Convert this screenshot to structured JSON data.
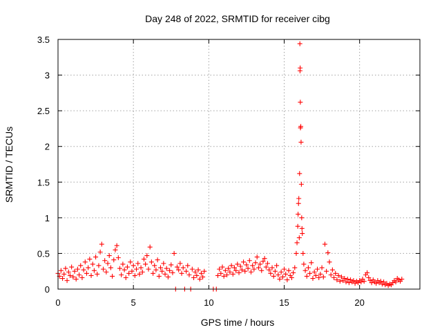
{
  "chart_data": {
    "type": "scatter",
    "title": "Day 248 of 2022, SRMTID for receiver cibg",
    "xlabel": "GPS time / hours",
    "ylabel": "SRMTID / TECUs",
    "xlim": [
      0,
      24
    ],
    "ylim": [
      0,
      3.5
    ],
    "xticks": [
      0,
      5,
      10,
      15,
      20
    ],
    "xtick_labels": [
      "0",
      "5",
      "10",
      "15",
      "20"
    ],
    "yticks": [
      0,
      0.5,
      1,
      1.5,
      2,
      2.5,
      3,
      3.5
    ],
    "ytick_labels": [
      "0",
      "0.5",
      "1",
      "1.5",
      "2",
      "2.5",
      "3",
      "3.5"
    ],
    "grid": true,
    "marker": "+",
    "color": "#ff0000",
    "series": [
      {
        "name": "SRMTID",
        "points": [
          [
            0.0,
            0.22
          ],
          [
            0.1,
            0.18
          ],
          [
            0.2,
            0.26
          ],
          [
            0.3,
            0.15
          ],
          [
            0.4,
            0.21
          ],
          [
            0.5,
            0.29
          ],
          [
            0.6,
            0.12
          ],
          [
            0.7,
            0.24
          ],
          [
            0.8,
            0.19
          ],
          [
            0.9,
            0.31
          ],
          [
            1.0,
            0.17
          ],
          [
            1.1,
            0.25
          ],
          [
            1.2,
            0.14
          ],
          [
            1.3,
            0.28
          ],
          [
            1.4,
            0.2
          ],
          [
            1.5,
            0.33
          ],
          [
            1.6,
            0.16
          ],
          [
            1.7,
            0.27
          ],
          [
            1.8,
            0.38
          ],
          [
            1.9,
            0.22
          ],
          [
            2.0,
            0.3
          ],
          [
            2.1,
            0.42
          ],
          [
            2.2,
            0.19
          ],
          [
            2.3,
            0.35
          ],
          [
            2.4,
            0.26
          ],
          [
            2.5,
            0.45
          ],
          [
            2.6,
            0.21
          ],
          [
            2.7,
            0.33
          ],
          [
            2.8,
            0.52
          ],
          [
            2.9,
            0.63
          ],
          [
            3.0,
            0.28
          ],
          [
            3.1,
            0.4
          ],
          [
            3.2,
            0.24
          ],
          [
            3.3,
            0.36
          ],
          [
            3.4,
            0.47
          ],
          [
            3.5,
            0.3
          ],
          [
            3.6,
            0.18
          ],
          [
            3.7,
            0.41
          ],
          [
            3.8,
            0.55
          ],
          [
            3.9,
            0.61
          ],
          [
            4.0,
            0.44
          ],
          [
            4.1,
            0.29
          ],
          [
            4.2,
            0.2
          ],
          [
            4.3,
            0.35
          ],
          [
            4.4,
            0.27
          ],
          [
            4.5,
            0.16
          ],
          [
            4.6,
            0.31
          ],
          [
            4.7,
            0.22
          ],
          [
            4.8,
            0.38
          ],
          [
            4.9,
            0.25
          ],
          [
            5.0,
            0.33
          ],
          [
            5.1,
            0.19
          ],
          [
            5.2,
            0.28
          ],
          [
            5.3,
            0.36
          ],
          [
            5.4,
            0.21
          ],
          [
            5.5,
            0.3
          ],
          [
            5.6,
            0.24
          ],
          [
            5.7,
            0.42
          ],
          [
            5.8,
            0.35
          ],
          [
            5.9,
            0.47
          ],
          [
            6.0,
            0.28
          ],
          [
            6.1,
            0.59
          ],
          [
            6.2,
            0.38
          ],
          [
            6.3,
            0.22
          ],
          [
            6.4,
            0.33
          ],
          [
            6.5,
            0.27
          ],
          [
            6.6,
            0.41
          ],
          [
            6.7,
            0.18
          ],
          [
            6.8,
            0.3
          ],
          [
            6.9,
            0.25
          ],
          [
            7.0,
            0.36
          ],
          [
            7.1,
            0.21
          ],
          [
            7.2,
            0.29
          ],
          [
            7.3,
            0.17
          ],
          [
            7.4,
            0.26
          ],
          [
            7.5,
            0.34
          ],
          [
            7.6,
            0.23
          ],
          [
            7.7,
            0.5
          ],
          [
            7.8,
            0.0
          ],
          [
            7.9,
            0.31
          ],
          [
            8.0,
            0.27
          ],
          [
            8.1,
            0.36
          ],
          [
            8.2,
            0.22
          ],
          [
            8.3,
            0.3
          ],
          [
            8.4,
            0.0
          ],
          [
            8.5,
            0.25
          ],
          [
            8.6,
            0.33
          ],
          [
            8.7,
            0.2
          ],
          [
            8.8,
            0.0
          ],
          [
            8.9,
            0.28
          ],
          [
            9.0,
            0.16
          ],
          [
            9.1,
            0.24
          ],
          [
            9.2,
            0.19
          ],
          [
            9.3,
            0.27
          ],
          [
            9.4,
            0.14
          ],
          [
            9.5,
            0.22
          ],
          [
            9.6,
            0.17
          ],
          [
            9.7,
            0.25
          ],
          [
            10.3,
            0.0
          ],
          [
            10.5,
            0.0
          ],
          [
            10.6,
            0.19
          ],
          [
            10.7,
            0.28
          ],
          [
            10.8,
            0.22
          ],
          [
            10.9,
            0.31
          ],
          [
            11.0,
            0.18
          ],
          [
            11.1,
            0.26
          ],
          [
            11.2,
            0.2
          ],
          [
            11.3,
            0.29
          ],
          [
            11.4,
            0.24
          ],
          [
            11.5,
            0.33
          ],
          [
            11.6,
            0.21
          ],
          [
            11.7,
            0.3
          ],
          [
            11.8,
            0.26
          ],
          [
            11.9,
            0.35
          ],
          [
            12.0,
            0.23
          ],
          [
            12.1,
            0.32
          ],
          [
            12.2,
            0.27
          ],
          [
            12.3,
            0.38
          ],
          [
            12.4,
            0.25
          ],
          [
            12.5,
            0.34
          ],
          [
            12.6,
            0.29
          ],
          [
            12.7,
            0.4
          ],
          [
            12.8,
            0.24
          ],
          [
            12.9,
            0.33
          ],
          [
            13.0,
            0.28
          ],
          [
            13.1,
            0.37
          ],
          [
            13.2,
            0.45
          ],
          [
            13.3,
            0.3
          ],
          [
            13.4,
            0.35
          ],
          [
            13.5,
            0.26
          ],
          [
            13.6,
            0.39
          ],
          [
            13.7,
            0.43
          ],
          [
            13.8,
            0.31
          ],
          [
            13.9,
            0.36
          ],
          [
            14.0,
            0.27
          ],
          [
            14.1,
            0.22
          ],
          [
            14.2,
            0.3
          ],
          [
            14.3,
            0.18
          ],
          [
            14.4,
            0.25
          ],
          [
            14.5,
            0.33
          ],
          [
            14.6,
            0.2
          ],
          [
            14.7,
            0.14
          ],
          [
            14.8,
            0.24
          ],
          [
            14.9,
            0.17
          ],
          [
            15.0,
            0.28
          ],
          [
            15.1,
            0.21
          ],
          [
            15.2,
            0.13
          ],
          [
            15.3,
            0.26
          ],
          [
            15.4,
            0.19
          ],
          [
            15.5,
            0.16
          ],
          [
            15.6,
            0.23
          ],
          [
            15.7,
            0.3
          ],
          [
            15.8,
            0.5
          ],
          [
            15.85,
            0.65
          ],
          [
            15.9,
            0.88
          ],
          [
            15.92,
            1.05
          ],
          [
            15.95,
            1.2
          ],
          [
            15.97,
            1.27
          ],
          [
            16.0,
            0.72
          ],
          [
            16.02,
            1.62
          ],
          [
            16.04,
            3.44
          ],
          [
            16.05,
            3.06
          ],
          [
            16.06,
            3.1
          ],
          [
            16.07,
            2.62
          ],
          [
            16.08,
            2.26
          ],
          [
            16.1,
            2.28
          ],
          [
            16.12,
            2.06
          ],
          [
            16.14,
            1.47
          ],
          [
            16.16,
            1.0
          ],
          [
            16.18,
            0.85
          ],
          [
            16.2,
            0.78
          ],
          [
            16.25,
            0.5
          ],
          [
            16.3,
            0.35
          ],
          [
            16.4,
            0.26
          ],
          [
            16.5,
            0.18
          ],
          [
            16.6,
            0.3
          ],
          [
            16.7,
            0.22
          ],
          [
            16.8,
            0.37
          ],
          [
            16.9,
            0.15
          ],
          [
            17.0,
            0.24
          ],
          [
            17.1,
            0.19
          ],
          [
            17.2,
            0.28
          ],
          [
            17.3,
            0.16
          ],
          [
            17.4,
            0.21
          ],
          [
            17.5,
            0.3
          ],
          [
            17.6,
            0.17
          ],
          [
            17.7,
            0.63
          ],
          [
            17.8,
            0.25
          ],
          [
            17.9,
            0.51
          ],
          [
            18.0,
            0.38
          ],
          [
            18.1,
            0.2
          ],
          [
            18.2,
            0.27
          ],
          [
            18.3,
            0.16
          ],
          [
            18.4,
            0.22
          ],
          [
            18.5,
            0.13
          ],
          [
            18.6,
            0.19
          ],
          [
            18.7,
            0.11
          ],
          [
            18.8,
            0.17
          ],
          [
            18.9,
            0.12
          ],
          [
            19.0,
            0.15
          ],
          [
            19.1,
            0.1
          ],
          [
            19.2,
            0.14
          ],
          [
            19.3,
            0.09
          ],
          [
            19.4,
            0.13
          ],
          [
            19.5,
            0.1
          ],
          [
            19.6,
            0.12
          ],
          [
            19.7,
            0.08
          ],
          [
            19.8,
            0.11
          ],
          [
            19.9,
            0.09
          ],
          [
            20.0,
            0.12
          ],
          [
            20.1,
            0.1
          ],
          [
            20.2,
            0.14
          ],
          [
            20.3,
            0.11
          ],
          [
            20.4,
            0.2
          ],
          [
            20.5,
            0.23
          ],
          [
            20.6,
            0.16
          ],
          [
            20.7,
            0.12
          ],
          [
            20.8,
            0.09
          ],
          [
            20.9,
            0.13
          ],
          [
            21.0,
            0.1
          ],
          [
            21.1,
            0.08
          ],
          [
            21.2,
            0.12
          ],
          [
            21.3,
            0.09
          ],
          [
            21.4,
            0.11
          ],
          [
            21.5,
            0.07
          ],
          [
            21.6,
            0.1
          ],
          [
            21.7,
            0.06
          ],
          [
            21.8,
            0.08
          ],
          [
            21.9,
            0.05
          ],
          [
            22.0,
            0.07
          ],
          [
            22.1,
            0.06
          ],
          [
            22.2,
            0.09
          ],
          [
            22.3,
            0.12
          ],
          [
            22.4,
            0.1
          ],
          [
            22.5,
            0.15
          ],
          [
            22.6,
            0.13
          ],
          [
            22.7,
            0.11
          ],
          [
            22.8,
            0.14
          ]
        ]
      }
    ]
  }
}
